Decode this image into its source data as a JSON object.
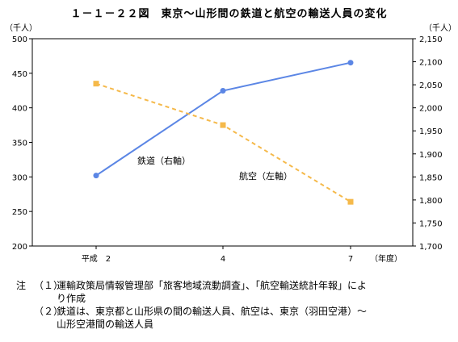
{
  "title": "１－１－２２図　東京～山形間の鉄道と航空の輸送人員の変化",
  "chart_data": {
    "type": "line",
    "categories": [
      "平成　2",
      "4",
      "7"
    ],
    "x_unit": "（年度）",
    "left_axis": {
      "unit": "（千人）",
      "ylim": [
        200,
        500
      ],
      "ticks": [
        200,
        250,
        300,
        350,
        400,
        450,
        500
      ]
    },
    "right_axis": {
      "unit": "（千人）",
      "ylim": [
        1700,
        2150
      ],
      "ticks": [
        "1,700",
        "1,750",
        "1,800",
        "1,850",
        "1,900",
        "1,950",
        "2,000",
        "2,050",
        "2,100",
        "2,150"
      ],
      "tick_values": [
        1700,
        1750,
        1800,
        1850,
        1900,
        1950,
        2000,
        2050,
        2100,
        2150
      ]
    },
    "series": [
      {
        "name": "鉄道（右軸）",
        "axis": "right",
        "values": [
          1853,
          2037,
          2098
        ],
        "color": "#5b86e5",
        "style": "solid",
        "marker": "circle"
      },
      {
        "name": "航空（左軸）",
        "axis": "left",
        "values": [
          435,
          375,
          264
        ],
        "color": "#f5b94a",
        "style": "dashed",
        "marker": "square"
      }
    ],
    "grid": false
  },
  "notes": {
    "mark": "注",
    "items": [
      {
        "num": "（１）",
        "lines": [
          "運輸政策局情報管理部「旅客地域流動調査」、「航空輸送統計年報」によ",
          "り作成"
        ]
      },
      {
        "num": "（２）",
        "lines": [
          "鉄道は、東京都と山形県の間の輸送人員、航空は、東京（羽田空港）～",
          "山形空港間の輸送人員"
        ]
      }
    ]
  }
}
